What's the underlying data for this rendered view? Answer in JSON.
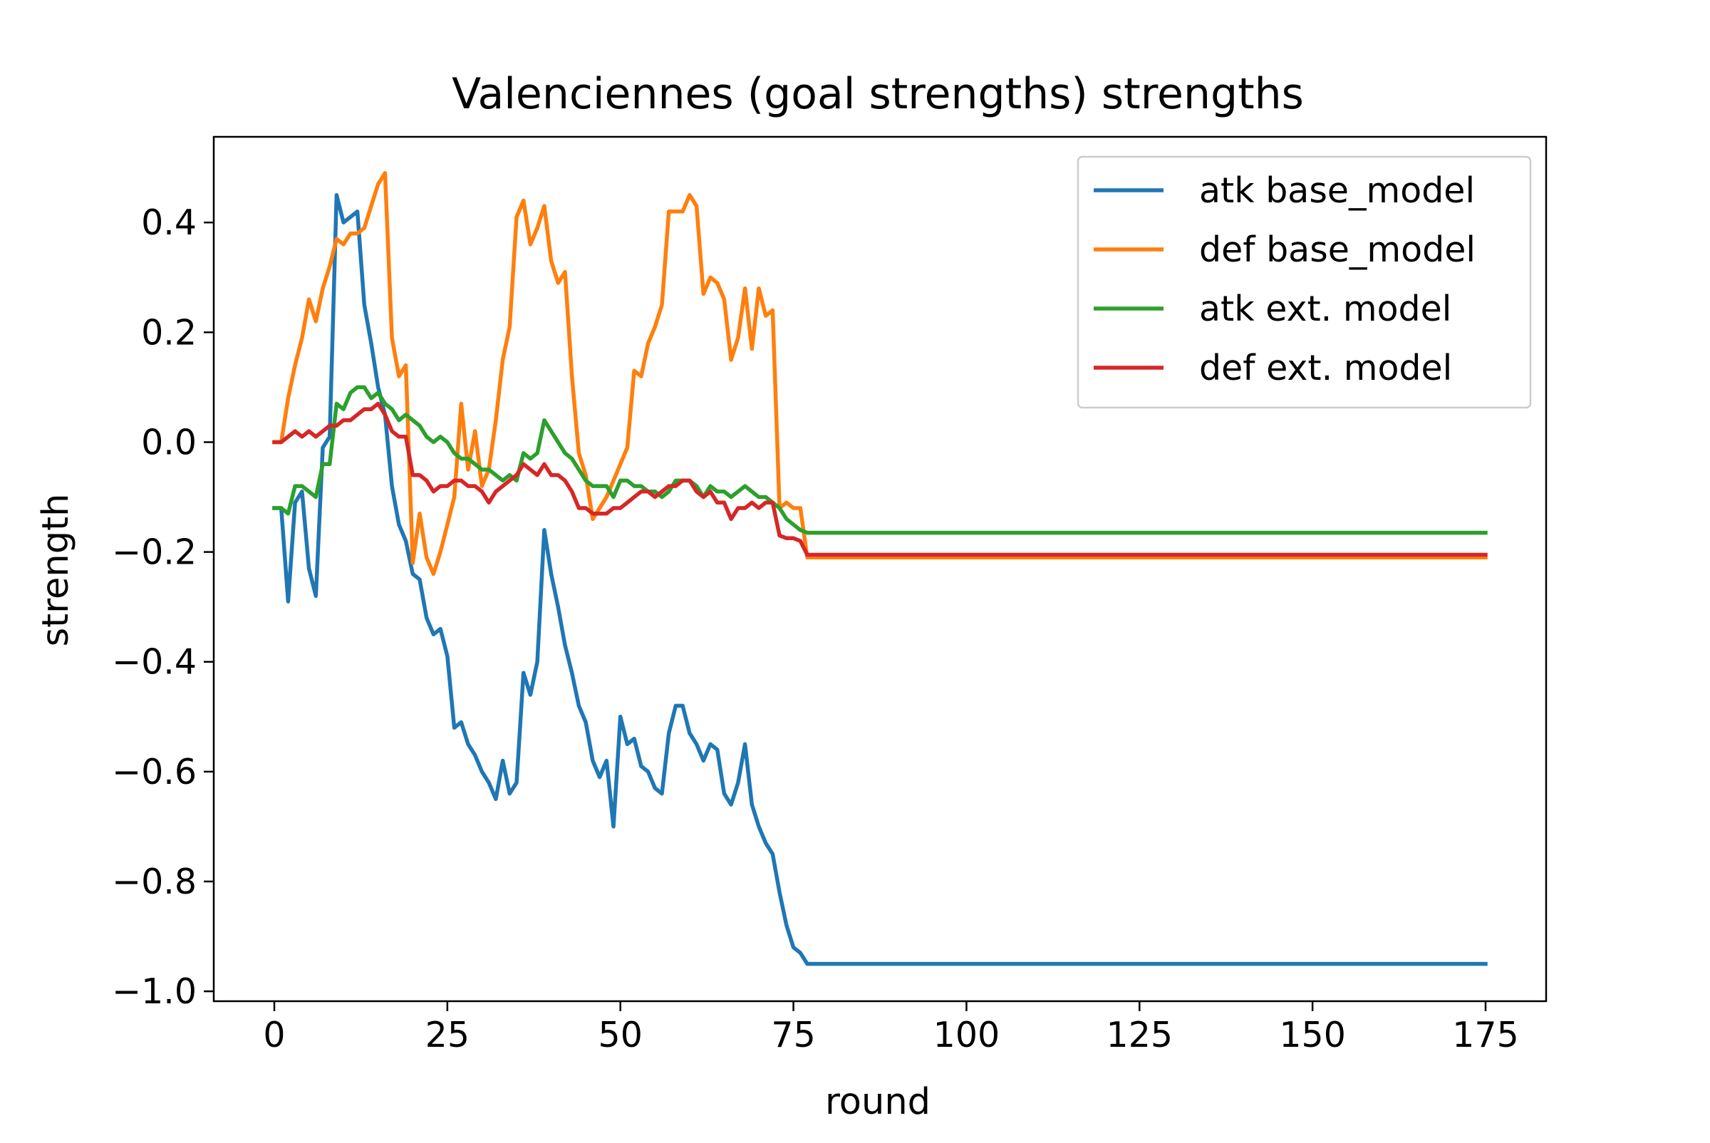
{
  "chart_data": {
    "type": "line",
    "title": "Valenciennes (goal strengths) strengths",
    "xlabel": "round",
    "ylabel": "strength",
    "xlim": [
      -8.75,
      183.75
    ],
    "ylim": [
      -1.018,
      0.556
    ],
    "xticks": [
      0,
      25,
      50,
      75,
      100,
      125,
      150,
      175
    ],
    "xtick_labels": [
      "0",
      "25",
      "50",
      "75",
      "100",
      "125",
      "150",
      "175"
    ],
    "yticks": [
      0.4,
      0.2,
      0.0,
      -0.2,
      -0.4,
      -0.6,
      -0.8,
      -1.0
    ],
    "ytick_labels": [
      "0.4",
      "0.2",
      "0.0",
      "−0.2",
      "−0.4",
      "−0.6",
      "−0.8",
      "−1.0"
    ],
    "grid": false,
    "legend_position": "top-right",
    "series": [
      {
        "name": "atk base_model",
        "color": "#1f77b4",
        "x": [
          0,
          1,
          2,
          3,
          4,
          5,
          6,
          7,
          8,
          9,
          10,
          11,
          12,
          13,
          14,
          15,
          16,
          17,
          18,
          19,
          20,
          21,
          22,
          23,
          24,
          25,
          26,
          27,
          28,
          29,
          30,
          31,
          32,
          33,
          34,
          35,
          36,
          37,
          38,
          39,
          40,
          41,
          42,
          43,
          44,
          45,
          46,
          47,
          48,
          49,
          50,
          51,
          52,
          53,
          54,
          55,
          56,
          57,
          58,
          59,
          60,
          61,
          62,
          63,
          64,
          65,
          66,
          67,
          68,
          69,
          70,
          71,
          72,
          73,
          74,
          75,
          76,
          77,
          175
        ],
        "y": [
          -0.12,
          -0.12,
          -0.29,
          -0.11,
          -0.09,
          -0.23,
          -0.28,
          -0.01,
          0.01,
          0.45,
          0.4,
          0.41,
          0.42,
          0.25,
          0.18,
          0.1,
          0.05,
          -0.08,
          -0.15,
          -0.18,
          -0.24,
          -0.25,
          -0.32,
          -0.35,
          -0.34,
          -0.39,
          -0.52,
          -0.51,
          -0.55,
          -0.57,
          -0.6,
          -0.62,
          -0.65,
          -0.58,
          -0.64,
          -0.62,
          -0.42,
          -0.46,
          -0.4,
          -0.16,
          -0.24,
          -0.3,
          -0.37,
          -0.42,
          -0.48,
          -0.51,
          -0.58,
          -0.61,
          -0.58,
          -0.7,
          -0.5,
          -0.55,
          -0.54,
          -0.59,
          -0.6,
          -0.63,
          -0.64,
          -0.53,
          -0.48,
          -0.48,
          -0.53,
          -0.55,
          -0.58,
          -0.55,
          -0.56,
          -0.64,
          -0.66,
          -0.62,
          -0.55,
          -0.66,
          -0.7,
          -0.73,
          -0.75,
          -0.82,
          -0.88,
          -0.92,
          -0.93,
          -0.95,
          -0.95
        ]
      },
      {
        "name": "def base_model",
        "color": "#ff7f0e",
        "x": [
          0,
          1,
          2,
          3,
          4,
          5,
          6,
          7,
          8,
          9,
          10,
          11,
          12,
          13,
          14,
          15,
          16,
          17,
          18,
          19,
          20,
          21,
          22,
          23,
          24,
          25,
          26,
          27,
          28,
          29,
          30,
          31,
          32,
          33,
          34,
          35,
          36,
          37,
          38,
          39,
          40,
          41,
          42,
          43,
          44,
          45,
          46,
          47,
          48,
          49,
          50,
          51,
          52,
          53,
          54,
          55,
          56,
          57,
          58,
          59,
          60,
          61,
          62,
          63,
          64,
          65,
          66,
          67,
          68,
          69,
          70,
          71,
          72,
          73,
          74,
          75,
          76,
          77,
          175
        ],
        "y": [
          0.0,
          0.0,
          0.08,
          0.14,
          0.19,
          0.26,
          0.22,
          0.28,
          0.32,
          0.37,
          0.36,
          0.38,
          0.38,
          0.39,
          0.43,
          0.47,
          0.49,
          0.19,
          0.12,
          0.14,
          -0.22,
          -0.13,
          -0.21,
          -0.24,
          -0.2,
          -0.15,
          -0.1,
          0.07,
          -0.05,
          0.02,
          -0.08,
          -0.05,
          0.04,
          0.15,
          0.21,
          0.41,
          0.44,
          0.36,
          0.39,
          0.43,
          0.33,
          0.29,
          0.31,
          0.12,
          -0.02,
          -0.06,
          -0.14,
          -0.12,
          -0.1,
          -0.07,
          -0.04,
          -0.01,
          0.13,
          0.12,
          0.18,
          0.21,
          0.25,
          0.42,
          0.42,
          0.42,
          0.45,
          0.43,
          0.27,
          0.3,
          0.29,
          0.26,
          0.15,
          0.19,
          0.28,
          0.17,
          0.28,
          0.23,
          0.24,
          -0.12,
          -0.11,
          -0.12,
          -0.12,
          -0.21,
          -0.21
        ]
      },
      {
        "name": "atk ext. model",
        "color": "#2ca02c",
        "x": [
          0,
          1,
          2,
          3,
          4,
          5,
          6,
          7,
          8,
          9,
          10,
          11,
          12,
          13,
          14,
          15,
          16,
          17,
          18,
          19,
          20,
          21,
          22,
          23,
          24,
          25,
          26,
          27,
          28,
          29,
          30,
          31,
          32,
          33,
          34,
          35,
          36,
          37,
          38,
          39,
          40,
          41,
          42,
          43,
          44,
          45,
          46,
          47,
          48,
          49,
          50,
          51,
          52,
          53,
          54,
          55,
          56,
          57,
          58,
          59,
          60,
          61,
          62,
          63,
          64,
          65,
          66,
          67,
          68,
          69,
          70,
          71,
          72,
          73,
          74,
          75,
          76,
          77,
          175
        ],
        "y": [
          -0.12,
          -0.12,
          -0.13,
          -0.08,
          -0.08,
          -0.09,
          -0.1,
          -0.04,
          -0.04,
          0.07,
          0.06,
          0.09,
          0.1,
          0.1,
          0.08,
          0.09,
          0.07,
          0.06,
          0.04,
          0.05,
          0.04,
          0.03,
          0.01,
          0.0,
          0.01,
          0.0,
          -0.02,
          -0.03,
          -0.03,
          -0.04,
          -0.05,
          -0.05,
          -0.06,
          -0.07,
          -0.06,
          -0.07,
          -0.02,
          -0.03,
          -0.02,
          0.04,
          0.02,
          0.0,
          -0.02,
          -0.03,
          -0.05,
          -0.07,
          -0.08,
          -0.08,
          -0.08,
          -0.1,
          -0.07,
          -0.07,
          -0.08,
          -0.08,
          -0.09,
          -0.09,
          -0.1,
          -0.09,
          -0.07,
          -0.07,
          -0.07,
          -0.08,
          -0.1,
          -0.08,
          -0.09,
          -0.09,
          -0.1,
          -0.09,
          -0.08,
          -0.09,
          -0.1,
          -0.1,
          -0.11,
          -0.12,
          -0.14,
          -0.15,
          -0.16,
          -0.165,
          -0.165
        ]
      },
      {
        "name": "def ext. model",
        "color": "#d62728",
        "x": [
          0,
          1,
          2,
          3,
          4,
          5,
          6,
          7,
          8,
          9,
          10,
          11,
          12,
          13,
          14,
          15,
          16,
          17,
          18,
          19,
          20,
          21,
          22,
          23,
          24,
          25,
          26,
          27,
          28,
          29,
          30,
          31,
          32,
          33,
          34,
          35,
          36,
          37,
          38,
          39,
          40,
          41,
          42,
          43,
          44,
          45,
          46,
          47,
          48,
          49,
          50,
          51,
          52,
          53,
          54,
          55,
          56,
          57,
          58,
          59,
          60,
          61,
          62,
          63,
          64,
          65,
          66,
          67,
          68,
          69,
          70,
          71,
          72,
          73,
          74,
          75,
          76,
          77,
          175
        ],
        "y": [
          0.0,
          0.0,
          0.01,
          0.02,
          0.01,
          0.02,
          0.01,
          0.02,
          0.03,
          0.03,
          0.04,
          0.04,
          0.05,
          0.06,
          0.06,
          0.07,
          0.05,
          0.02,
          0.01,
          0.01,
          -0.06,
          -0.06,
          -0.07,
          -0.09,
          -0.08,
          -0.08,
          -0.07,
          -0.07,
          -0.08,
          -0.08,
          -0.09,
          -0.11,
          -0.09,
          -0.08,
          -0.07,
          -0.06,
          -0.04,
          -0.05,
          -0.06,
          -0.04,
          -0.06,
          -0.06,
          -0.07,
          -0.09,
          -0.12,
          -0.12,
          -0.13,
          -0.13,
          -0.13,
          -0.12,
          -0.12,
          -0.11,
          -0.1,
          -0.09,
          -0.09,
          -0.1,
          -0.09,
          -0.08,
          -0.08,
          -0.07,
          -0.07,
          -0.09,
          -0.1,
          -0.09,
          -0.11,
          -0.11,
          -0.14,
          -0.12,
          -0.12,
          -0.11,
          -0.12,
          -0.11,
          -0.11,
          -0.17,
          -0.175,
          -0.175,
          -0.18,
          -0.205,
          -0.205
        ]
      }
    ]
  }
}
